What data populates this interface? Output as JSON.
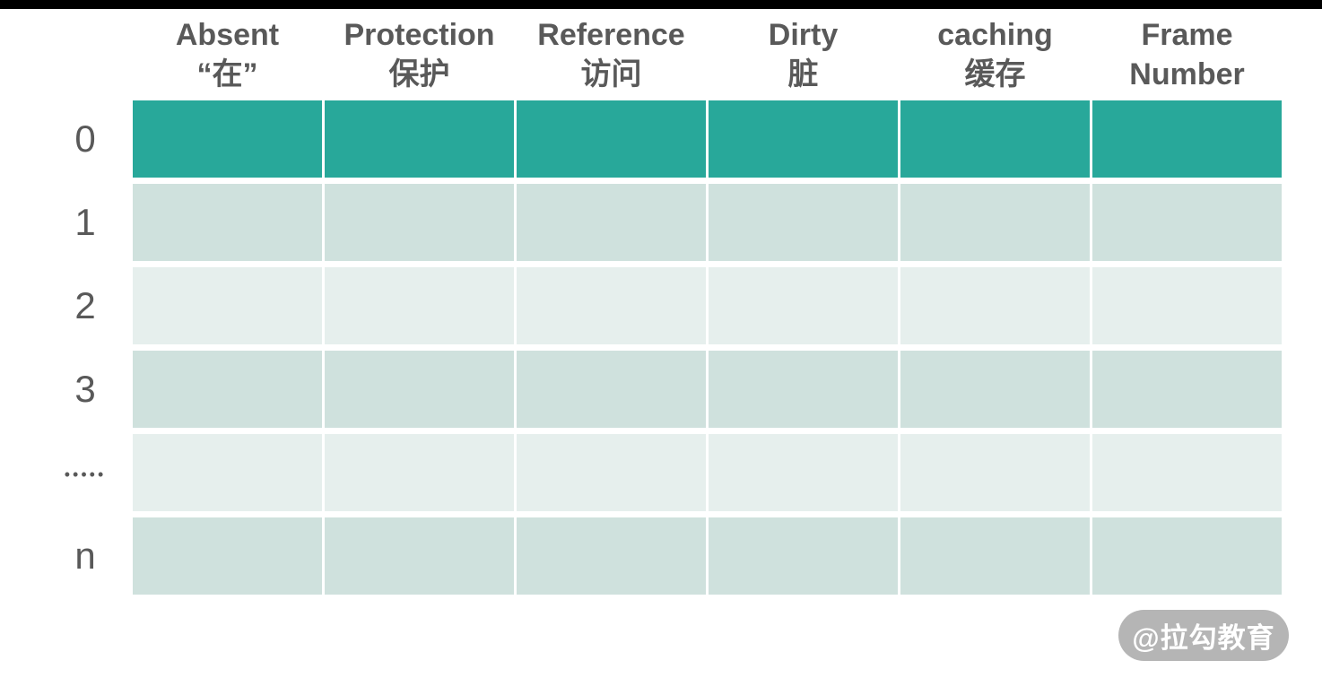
{
  "page": {
    "background": "#ffffff",
    "top_bar_color": "#000000"
  },
  "header": {
    "columns": [
      {
        "line1": "Absent",
        "line2": "“在”"
      },
      {
        "line1": "Protection",
        "line2": "保护"
      },
      {
        "line1": "Reference",
        "line2": "访问"
      },
      {
        "line1": "Dirty",
        "line2": "脏"
      },
      {
        "line1": "caching",
        "line2": "缓存"
      },
      {
        "line1": "Frame",
        "line2": "Number"
      }
    ]
  },
  "rows": [
    {
      "label": "0",
      "highlighted": true
    },
    {
      "label": "1",
      "highlighted": false
    },
    {
      "label": "2",
      "highlighted": false
    },
    {
      "label": "3",
      "highlighted": false
    },
    {
      "label": "•••••",
      "highlighted": false
    },
    {
      "label": "n",
      "highlighted": false
    }
  ],
  "colors": {
    "highlight_row": "#28a89a",
    "row_shade_dark": "#cfe1dd",
    "row_shade_light": "#e6efed",
    "label_text": "#595959",
    "top_bar": "#000000",
    "watermark_bg": "#b5b5b5",
    "watermark_text": "#ffffff"
  },
  "watermark": {
    "text": "@拉勾教育"
  }
}
